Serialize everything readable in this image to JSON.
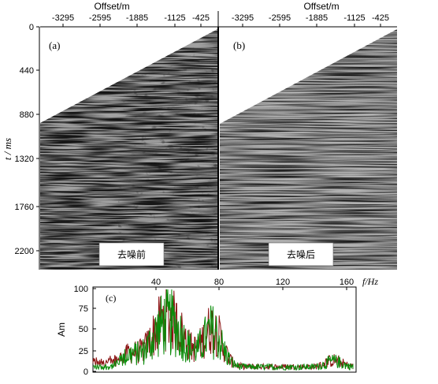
{
  "figure": {
    "top_axis": {
      "title": "Offset/m",
      "ticks": [
        "-3295",
        "-2595",
        "-1885",
        "-1125",
        "-425"
      ]
    },
    "left_axis": {
      "title": "t / ms",
      "ticks": [
        "0",
        "440",
        "880",
        "1320",
        "1760",
        "2200"
      ]
    },
    "panel_a": {
      "label": "(a)",
      "caption": "去噪前"
    },
    "panel_b": {
      "label": "(b)",
      "caption": "去噪后"
    },
    "spectrum": {
      "label": "(c)",
      "ylabel": "Am",
      "xlabel": "f/Hz",
      "x_ticks": [
        "40",
        "80",
        "120",
        "160"
      ],
      "y_ticks": [
        "100",
        "75",
        "50",
        "25",
        "0"
      ],
      "colors": {
        "before": "#8b1414",
        "after": "#0a8c0a"
      }
    }
  }
}
